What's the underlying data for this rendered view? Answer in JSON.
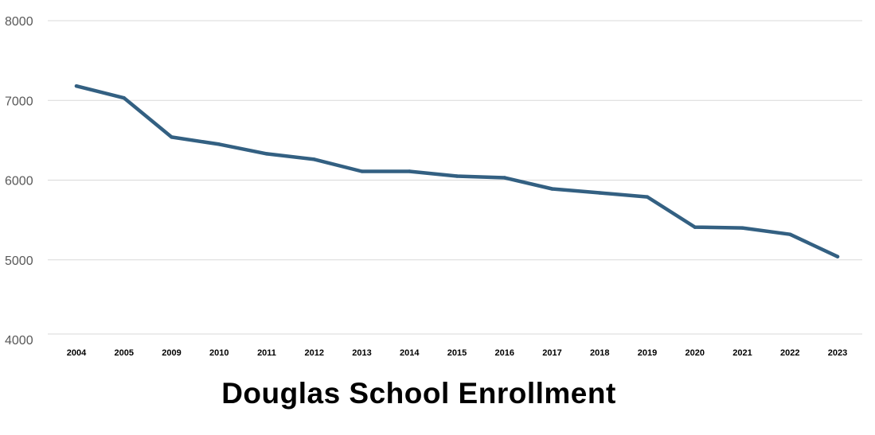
{
  "chart_data": {
    "type": "line",
    "title": "Douglas School Enrollment",
    "xlabel": "",
    "ylabel": "",
    "categories": [
      "2004",
      "2005",
      "2009",
      "2010",
      "2011",
      "2012",
      "2013",
      "2014",
      "2015",
      "2016",
      "2017",
      "2018",
      "2019",
      "2020",
      "2021",
      "2022",
      "2023"
    ],
    "series": [
      {
        "values": [
          7180,
          7030,
          6540,
          6450,
          6330,
          6260,
          6110,
          6110,
          6050,
          6030,
          5890,
          5840,
          5790,
          5410,
          5400,
          5320,
          5040
        ]
      }
    ],
    "ylim": [
      4000,
      8000
    ],
    "yticks": [
      "4000",
      "5000",
      "6000",
      "7000",
      "8000"
    ],
    "grid": true,
    "legend": "none",
    "colors": {
      "line": "#336082",
      "grid": "#d9d9d9",
      "tick_text": "#595959"
    }
  }
}
